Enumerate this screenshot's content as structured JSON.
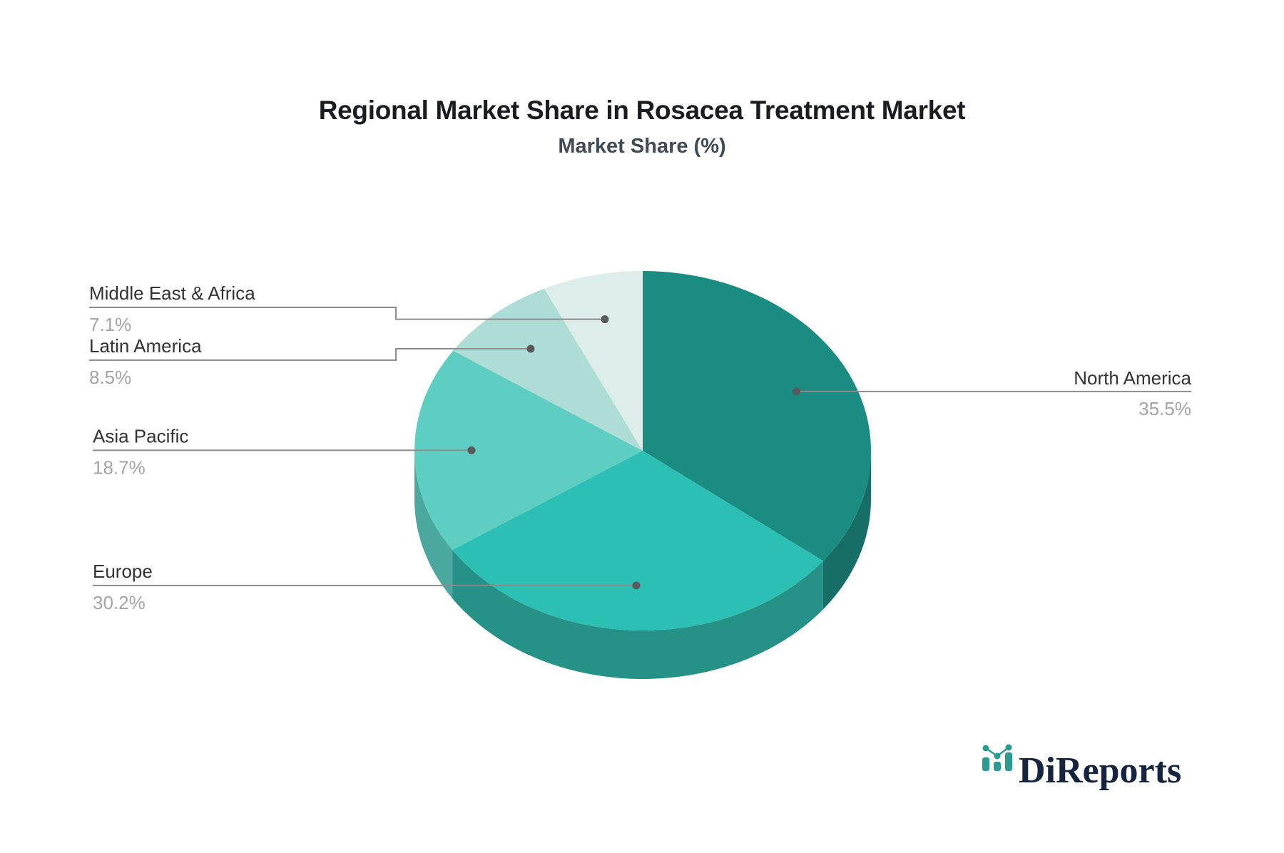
{
  "title": "Regional Market Share in Rosacea Treatment Market",
  "subtitle": "Market Share (%)",
  "colors": {
    "background": "#ffffff",
    "title_text": "#1b1c20",
    "subtitle_text": "#3e4b57",
    "label_text": "#333333",
    "percent_text": "#a4a4a4",
    "leader_line": "#8c8c8c",
    "callout_dot": "#58595b"
  },
  "logo": {
    "text": "DiReports",
    "icon": "bar-chart-logo-icon",
    "text_color": "#152540",
    "accent": "#2b9b91"
  },
  "chart_data": {
    "type": "pie",
    "style": "3d",
    "title": "Regional Market Share in Rosacea Treatment Market",
    "subtitle": "Market Share (%)",
    "unit": "%",
    "start_angle": "top",
    "direction": "clockwise",
    "legend": "none",
    "labels_layout": "callout-lines",
    "labels": [
      "North America",
      "Europe",
      "Asia Pacific",
      "Latin America",
      "Middle East & Africa"
    ],
    "values": [
      35.5,
      30.2,
      18.7,
      8.5,
      7.1
    ],
    "display_values": [
      "35.5%",
      "30.2%",
      "18.7%",
      "8.5%",
      "7.1%"
    ],
    "slice_colors": [
      "#1b8c82",
      "#2cbfb3",
      "#5fcec2",
      "#aeddd7",
      "#ddedea"
    ],
    "side_colors": [
      "#176e66",
      "#259187",
      "#4aa89e",
      "#8bb8b2",
      "#b7c9c6"
    ]
  }
}
